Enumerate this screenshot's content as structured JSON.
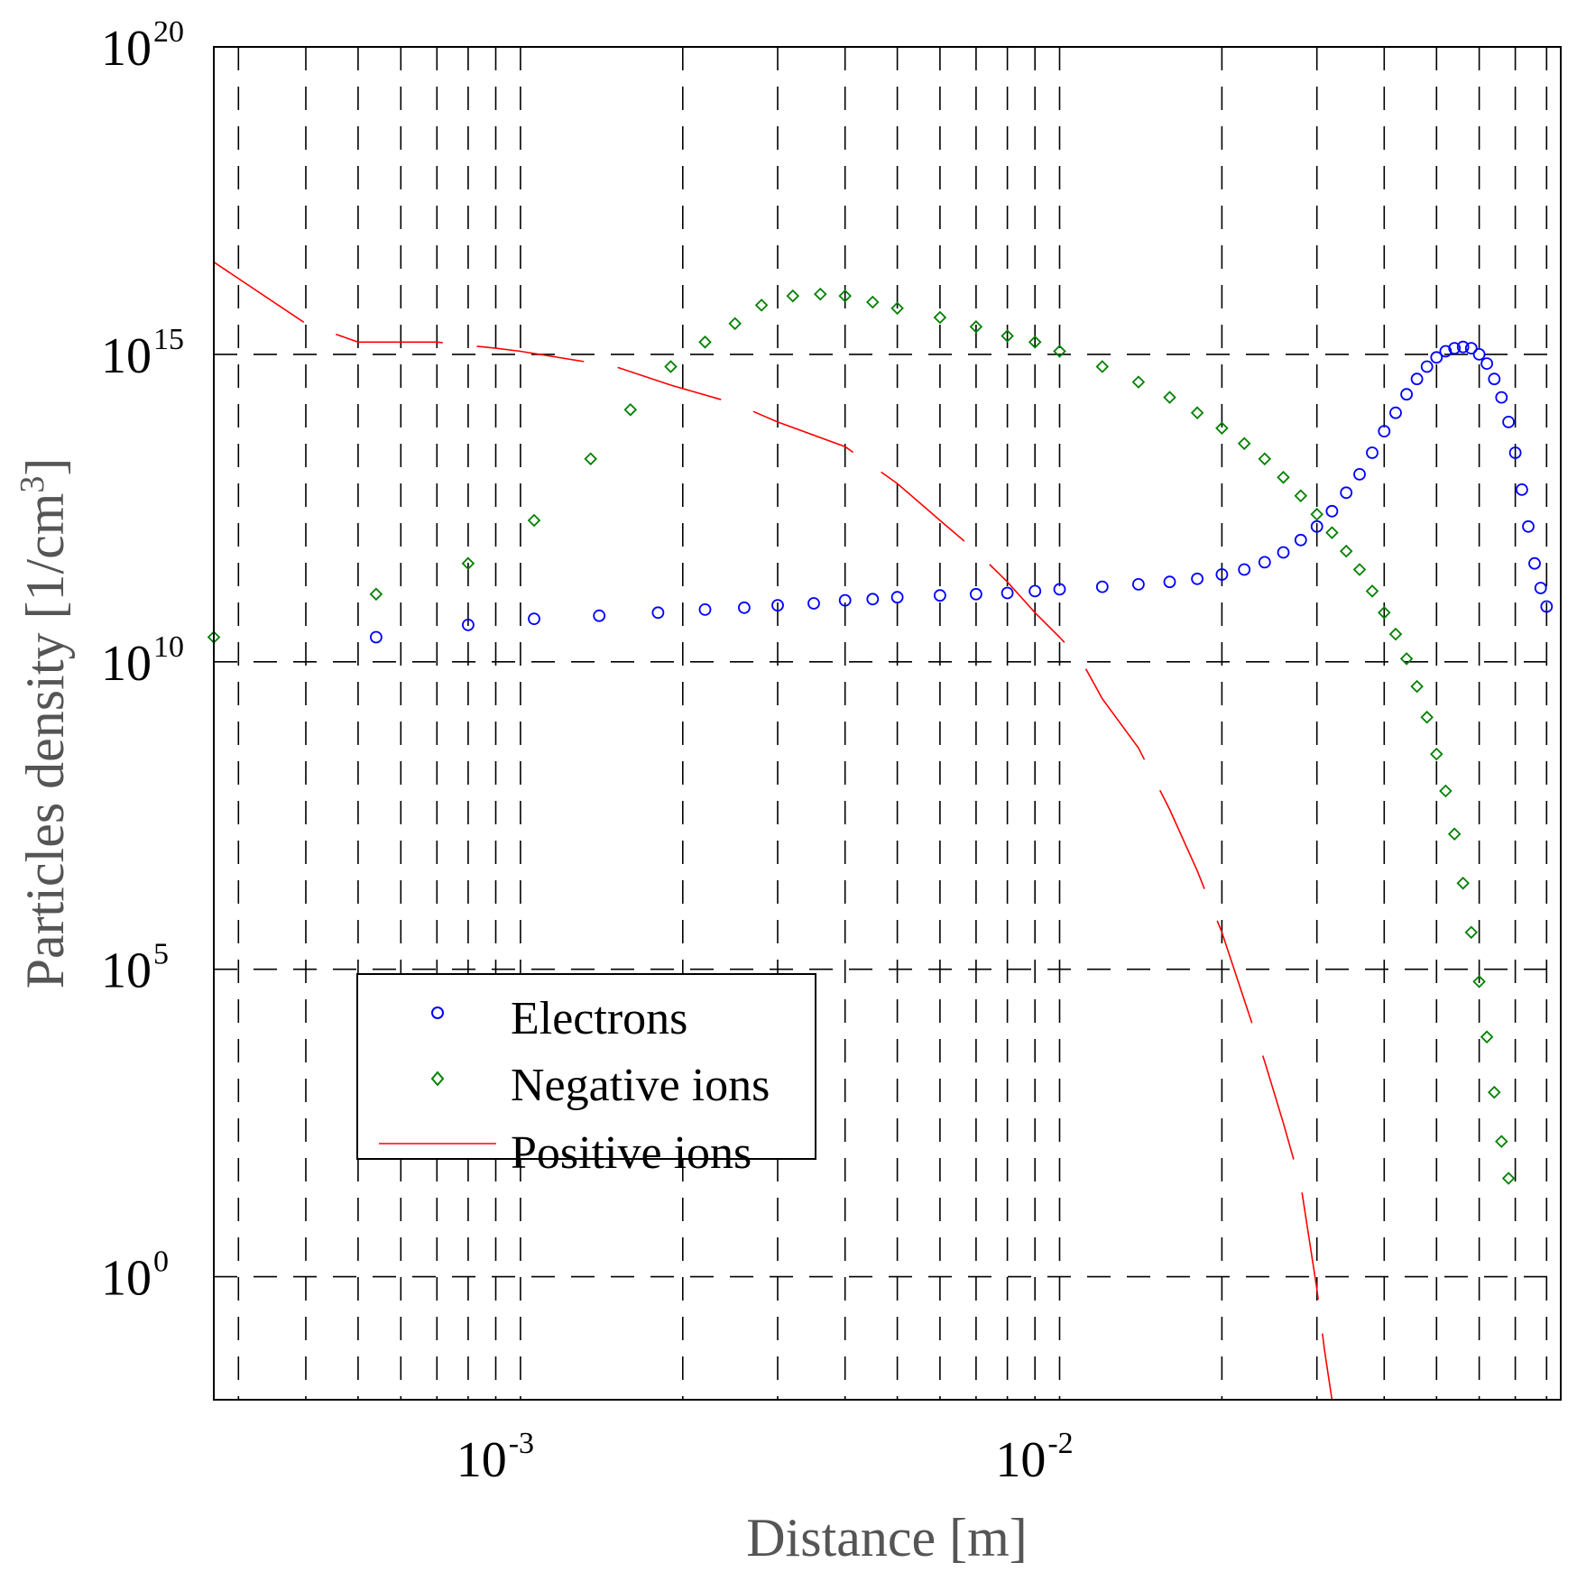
{
  "chart_data": {
    "type": "scatter",
    "xscale": "log",
    "yscale": "log",
    "xlim": [
      0.00027,
      0.085
    ],
    "ylim": [
      0.01,
      1e+20
    ],
    "grid": true,
    "grid_style": "dashed",
    "xlabel": "Distance [m]",
    "ylabel_main": "Particles density [1/cm",
    "ylabel_sup": "3",
    "ylabel_end": "]",
    "x_ticks": [
      {
        "value": 0.001,
        "base": "10",
        "exp": "-3"
      },
      {
        "value": 0.01,
        "base": "10",
        "exp": "-2"
      }
    ],
    "y_ticks": [
      {
        "value": 1.0,
        "base": "10",
        "exp": "0"
      },
      {
        "value": 100000.0,
        "base": "10",
        "exp": "5"
      },
      {
        "value": 10000000000.0,
        "base": "10",
        "exp": "10"
      },
      {
        "value": 1000000000000000.0,
        "base": "10",
        "exp": "15"
      },
      {
        "value": 1e+20,
        "base": "10",
        "exp": "20"
      }
    ],
    "legend_position": "lower-left",
    "series": [
      {
        "name": "Electrons",
        "marker": "circle",
        "color": "#0000ff",
        "points": [
          [
            0.00054,
            10.4
          ],
          [
            0.0008,
            10.6
          ],
          [
            0.00106,
            10.7
          ],
          [
            0.0014,
            10.75
          ],
          [
            0.0018,
            10.8
          ],
          [
            0.0022,
            10.85
          ],
          [
            0.0026,
            10.88
          ],
          [
            0.003,
            10.92
          ],
          [
            0.0035,
            10.95
          ],
          [
            0.004,
            11.0
          ],
          [
            0.0045,
            11.02
          ],
          [
            0.005,
            11.05
          ],
          [
            0.006,
            11.08
          ],
          [
            0.007,
            11.1
          ],
          [
            0.008,
            11.12
          ],
          [
            0.009,
            11.15
          ],
          [
            0.01,
            11.18
          ],
          [
            0.012,
            11.22
          ],
          [
            0.014,
            11.26
          ],
          [
            0.016,
            11.3
          ],
          [
            0.018,
            11.35
          ],
          [
            0.02,
            11.42
          ],
          [
            0.022,
            11.5
          ],
          [
            0.024,
            11.62
          ],
          [
            0.026,
            11.78
          ],
          [
            0.028,
            11.98
          ],
          [
            0.03,
            12.2
          ],
          [
            0.032,
            12.45
          ],
          [
            0.034,
            12.75
          ],
          [
            0.036,
            13.05
          ],
          [
            0.038,
            13.4
          ],
          [
            0.04,
            13.75
          ],
          [
            0.042,
            14.05
          ],
          [
            0.044,
            14.35
          ],
          [
            0.046,
            14.6
          ],
          [
            0.048,
            14.8
          ],
          [
            0.05,
            14.95
          ],
          [
            0.052,
            15.05
          ],
          [
            0.054,
            15.1
          ],
          [
            0.056,
            15.12
          ],
          [
            0.058,
            15.1
          ],
          [
            0.06,
            15.0
          ],
          [
            0.062,
            14.85
          ],
          [
            0.064,
            14.6
          ],
          [
            0.066,
            14.3
          ],
          [
            0.068,
            13.9
          ],
          [
            0.07,
            13.4
          ],
          [
            0.072,
            12.8
          ],
          [
            0.074,
            12.2
          ],
          [
            0.076,
            11.6
          ],
          [
            0.078,
            11.2
          ],
          [
            0.08,
            10.9
          ]
        ]
      },
      {
        "name": "Negative ions",
        "marker": "diamond",
        "color": "#008000",
        "points": [
          [
            0.00027,
            10.4
          ],
          [
            0.00054,
            11.1
          ],
          [
            0.0008,
            11.6
          ],
          [
            0.00106,
            12.3
          ],
          [
            0.00135,
            13.3
          ],
          [
            0.0016,
            14.1
          ],
          [
            0.0019,
            14.8
          ],
          [
            0.0022,
            15.2
          ],
          [
            0.0025,
            15.5
          ],
          [
            0.0028,
            15.8
          ],
          [
            0.0032,
            15.95
          ],
          [
            0.0036,
            15.98
          ],
          [
            0.004,
            15.95
          ],
          [
            0.0045,
            15.85
          ],
          [
            0.005,
            15.75
          ],
          [
            0.006,
            15.6
          ],
          [
            0.007,
            15.45
          ],
          [
            0.008,
            15.3
          ],
          [
            0.009,
            15.2
          ],
          [
            0.01,
            15.05
          ],
          [
            0.012,
            14.8
          ],
          [
            0.014,
            14.55
          ],
          [
            0.016,
            14.3
          ],
          [
            0.018,
            14.05
          ],
          [
            0.02,
            13.8
          ],
          [
            0.022,
            13.55
          ],
          [
            0.024,
            13.3
          ],
          [
            0.026,
            13.0
          ],
          [
            0.028,
            12.7
          ],
          [
            0.03,
            12.4
          ],
          [
            0.032,
            12.1
          ],
          [
            0.034,
            11.8
          ],
          [
            0.036,
            11.5
          ],
          [
            0.038,
            11.15
          ],
          [
            0.04,
            10.8
          ],
          [
            0.042,
            10.45
          ],
          [
            0.044,
            10.05
          ],
          [
            0.046,
            9.6
          ],
          [
            0.048,
            9.1
          ],
          [
            0.05,
            8.5
          ],
          [
            0.052,
            7.9
          ],
          [
            0.054,
            7.2
          ],
          [
            0.056,
            6.4
          ],
          [
            0.058,
            5.6
          ],
          [
            0.06,
            4.8
          ],
          [
            0.062,
            3.9
          ],
          [
            0.064,
            3.0
          ],
          [
            0.066,
            2.2
          ],
          [
            0.068,
            1.6
          ]
        ]
      },
      {
        "name": "Positive ions",
        "marker": "line",
        "color": "#ff0000",
        "points": [
          [
            0.00027,
            16.5
          ],
          [
            0.0004,
            15.5
          ],
          [
            0.0005,
            15.2
          ],
          [
            0.0007,
            15.2
          ],
          [
            0.0009,
            15.1
          ],
          [
            0.001,
            15.05
          ],
          [
            0.0015,
            14.8
          ],
          [
            0.0019,
            14.5
          ],
          [
            0.0025,
            14.2
          ],
          [
            0.003,
            13.9
          ],
          [
            0.004,
            13.5
          ],
          [
            0.005,
            12.9
          ],
          [
            0.006,
            12.3
          ],
          [
            0.007,
            11.8
          ],
          [
            0.008,
            11.3
          ],
          [
            0.009,
            10.8
          ],
          [
            0.01,
            10.4
          ],
          [
            0.011,
            10.0
          ],
          [
            0.012,
            9.4
          ],
          [
            0.014,
            8.6
          ],
          [
            0.016,
            7.6
          ],
          [
            0.018,
            6.6
          ],
          [
            0.02,
            5.6
          ],
          [
            0.022,
            4.5
          ],
          [
            0.024,
            3.5
          ],
          [
            0.026,
            2.5
          ],
          [
            0.028,
            1.5
          ],
          [
            0.03,
            -0.2
          ],
          [
            0.031,
            -1.2
          ],
          [
            0.032,
            -2.0
          ]
        ]
      }
    ]
  }
}
